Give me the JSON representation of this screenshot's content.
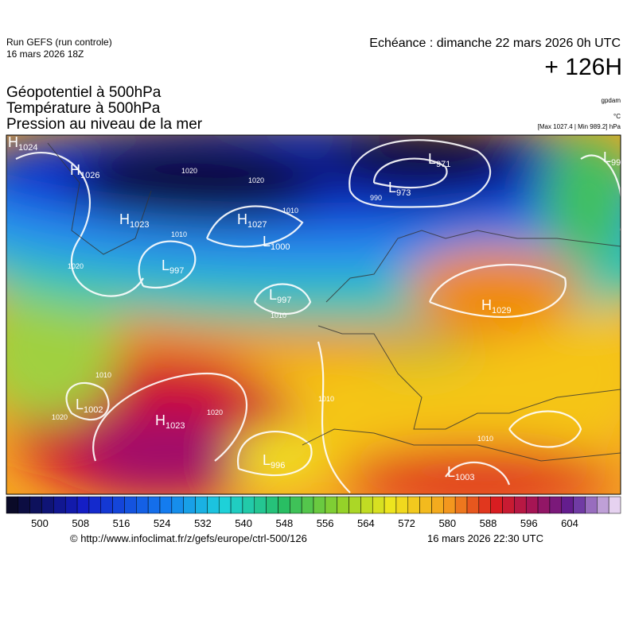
{
  "header": {
    "run": "Run GEFS (run controle)",
    "run_date": "16 mars 2026 18Z",
    "echeance": "Echéance : dimanche 22 mars 2026 0h UTC",
    "lead": "+ 126H",
    "titles": [
      "Géopotentiel à 500hPa",
      "Température à 500hPa",
      "Pression au niveau de la mer"
    ],
    "units": [
      "gpdam",
      "°C"
    ],
    "range": "[Max 1027.4 | Min 989.2] hPa"
  },
  "centers": [
    {
      "letter": "H",
      "value": "1024"
    },
    {
      "letter": "H",
      "value": "1026"
    },
    {
      "letter": "H",
      "value": "1023"
    },
    {
      "letter": "L",
      "value": "997"
    },
    {
      "letter": "H",
      "value": "1027"
    },
    {
      "letter": "L",
      "value": "1000"
    },
    {
      "letter": "L",
      "value": "997"
    },
    {
      "letter": "L",
      "value": "971"
    },
    {
      "letter": "L",
      "value": "973"
    },
    {
      "letter": "L",
      "value": "99"
    },
    {
      "letter": "H",
      "value": "1029"
    },
    {
      "letter": "L",
      "value": "1002"
    },
    {
      "letter": "H",
      "value": "1023"
    },
    {
      "letter": "L",
      "value": "996"
    },
    {
      "letter": "L",
      "value": "1003"
    }
  ],
  "isobar_labels": [
    "1020",
    "1010",
    "1020",
    "1020",
    "1010",
    "990",
    "1010",
    "1020",
    "1010",
    "1010",
    "1020",
    "1010"
  ],
  "colorbar": {
    "labels": [
      500,
      508,
      516,
      524,
      532,
      540,
      548,
      556,
      564,
      572,
      580,
      588,
      596,
      604
    ]
  },
  "footer": {
    "url": "© http://www.infoclimat.fr/z/gefs/europe/ctrl-500/126",
    "date": "16 mars 2026 22:30 UTC"
  }
}
